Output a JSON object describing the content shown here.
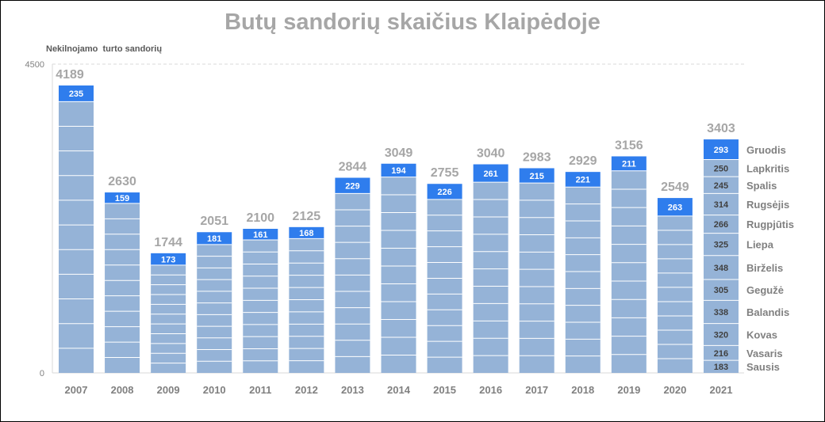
{
  "chart_data": {
    "type": "bar",
    "stacked": true,
    "title": "Butų sandorių skaičius Klaipėdoje",
    "ylabel": "Nekilnojamo  turto sandorių",
    "ylim": [
      0,
      4500
    ],
    "yticks": [
      0,
      4500
    ],
    "grid": false,
    "categories": [
      "2007",
      "2008",
      "2009",
      "2010",
      "2011",
      "2012",
      "2013",
      "2014",
      "2015",
      "2016",
      "2017",
      "2018",
      "2019",
      "2020",
      "2021"
    ],
    "totals": [
      4189,
      2630,
      1744,
      2051,
      2100,
      2125,
      2844,
      3049,
      2755,
      3040,
      2983,
      2929,
      3156,
      2549,
      3403
    ],
    "december": [
      235,
      159,
      173,
      181,
      161,
      168,
      229,
      194,
      226,
      261,
      215,
      221,
      211,
      263,
      293
    ],
    "months": [
      "Sausis",
      "Vasaris",
      "Kovas",
      "Balandis",
      "Gegužė",
      "Birželis",
      "Liepa",
      "Rugpjūtis",
      "Rugsėjis",
      "Spalis",
      "Lapkritis",
      "Gruodis"
    ],
    "monthly_2021": [
      183,
      216,
      320,
      338,
      305,
      348,
      325,
      266,
      314,
      245,
      250,
      293
    ],
    "colors": {
      "months": "#95b3d7",
      "december": "#2f7ded",
      "segment_line": "#ffffff",
      "total_label": "#a6a6a6",
      "axis_text": "#808080"
    }
  }
}
